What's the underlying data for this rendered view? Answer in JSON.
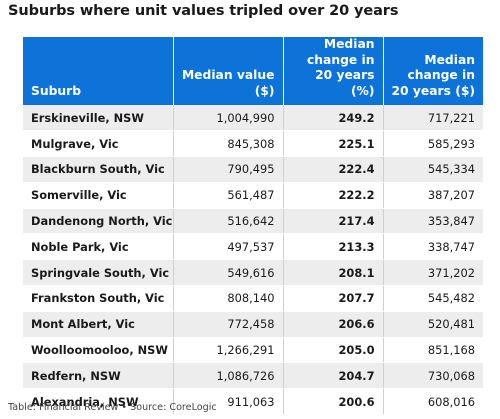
{
  "chart_data": {
    "type": "table",
    "title": "Suburbs where unit values tripled over 20 years",
    "columns": [
      "Suburb",
      "Median value ($)",
      "Median change in 20 years (%)",
      "Median change in 20 years ($)"
    ],
    "rows": [
      [
        "Erskineville, NSW",
        "1,004,990",
        "249.2",
        "717,221"
      ],
      [
        "Mulgrave, Vic",
        "845,308",
        "225.1",
        "585,293"
      ],
      [
        "Blackburn South, Vic",
        "790,495",
        "222.4",
        "545,334"
      ],
      [
        "Somerville, Vic",
        "561,487",
        "222.2",
        "387,207"
      ],
      [
        "Dandenong North, Vic",
        "516,642",
        "217.4",
        "353,847"
      ],
      [
        "Noble Park, Vic",
        "497,537",
        "213.3",
        "338,747"
      ],
      [
        "Springvale South, Vic",
        "549,616",
        "208.1",
        "371,202"
      ],
      [
        "Frankston South, Vic",
        "808,140",
        "207.7",
        "545,482"
      ],
      [
        "Mont Albert, Vic",
        "772,458",
        "206.6",
        "520,481"
      ],
      [
        "Woolloomooloo, NSW",
        "1,266,291",
        "205.0",
        "851,168"
      ],
      [
        "Redfern, NSW",
        "1,086,726",
        "204.7",
        "730,068"
      ],
      [
        "Alexandria, NSW",
        "911,063",
        "200.6",
        "608,016"
      ]
    ],
    "footer": "Table: Financial Review • Source: CoreLogic"
  },
  "colors": {
    "header_bg": "#0d73d9",
    "row_alt_bg": "#ededed"
  }
}
